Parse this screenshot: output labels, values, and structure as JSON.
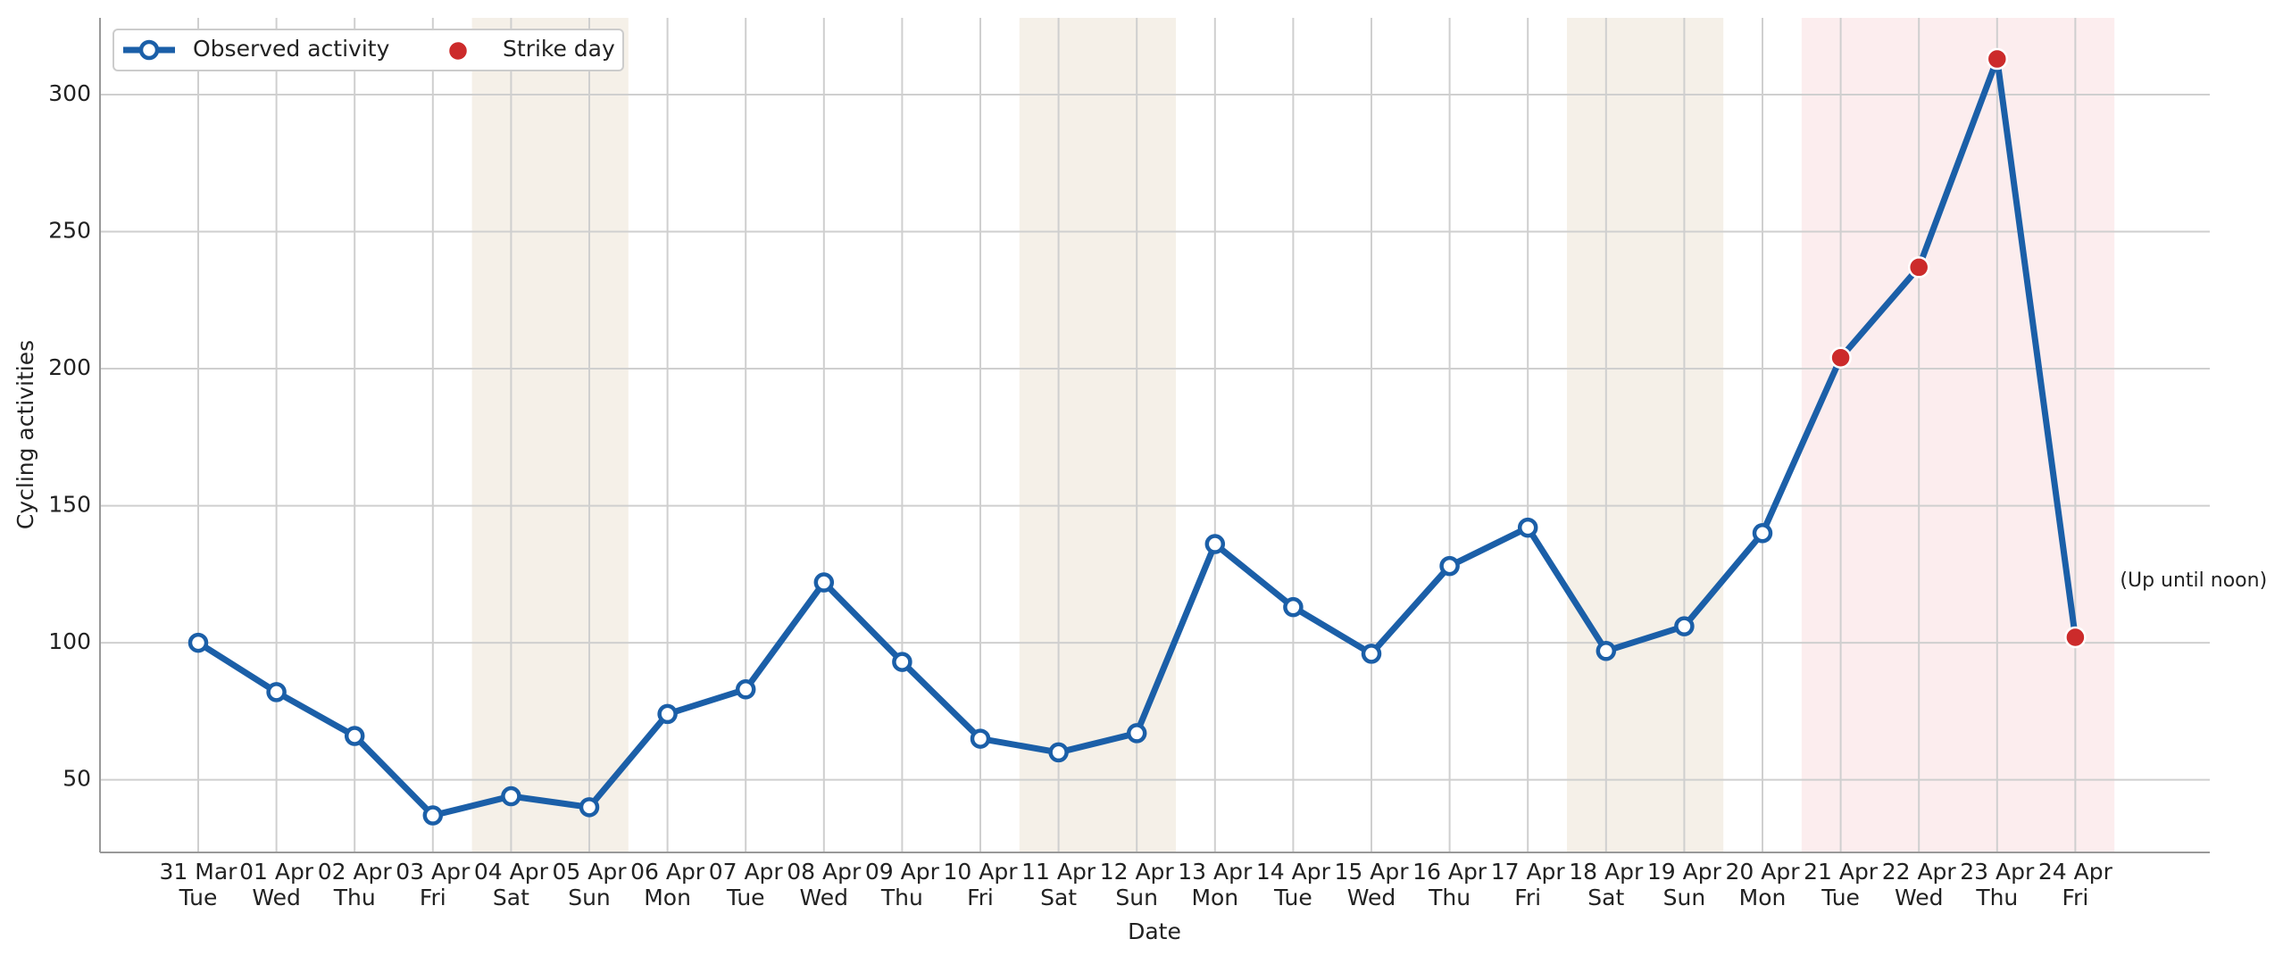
{
  "chart_data": {
    "type": "line",
    "xlabel": "Date",
    "ylabel": "Cycling activities",
    "categories": [
      "31 Mar",
      "01 Apr",
      "02 Apr",
      "03 Apr",
      "04 Apr",
      "05 Apr",
      "06 Apr",
      "07 Apr",
      "08 Apr",
      "09 Apr",
      "10 Apr",
      "11 Apr",
      "12 Apr",
      "13 Apr",
      "14 Apr",
      "15 Apr",
      "16 Apr",
      "17 Apr",
      "18 Apr",
      "19 Apr",
      "20 Apr",
      "21 Apr",
      "22 Apr",
      "23 Apr",
      "24 Apr"
    ],
    "weekdays": [
      "Tue",
      "Wed",
      "Thu",
      "Fri",
      "Sat",
      "Sun",
      "Mon",
      "Tue",
      "Wed",
      "Thu",
      "Fri",
      "Sat",
      "Sun",
      "Mon",
      "Tue",
      "Wed",
      "Thu",
      "Fri",
      "Sat",
      "Sun",
      "Mon",
      "Tue",
      "Wed",
      "Thu",
      "Fri"
    ],
    "series": [
      {
        "name": "Observed activity",
        "color": "#1b5fa8",
        "values": [
          100,
          82,
          66,
          37,
          44,
          40,
          74,
          83,
          122,
          93,
          65,
          60,
          67,
          136,
          113,
          96,
          128,
          142,
          97,
          106,
          140,
          204,
          237,
          313,
          102
        ]
      },
      {
        "name": "Strike day",
        "color": "#cc2b2b",
        "values": [
          null,
          null,
          null,
          null,
          null,
          null,
          null,
          null,
          null,
          null,
          null,
          null,
          null,
          null,
          null,
          null,
          null,
          null,
          null,
          null,
          null,
          204,
          237,
          313,
          102
        ]
      }
    ],
    "shaded": [
      {
        "from": "04 Apr",
        "to": "05 Apr",
        "color": "#f5f0e8"
      },
      {
        "from": "11 Apr",
        "to": "12 Apr",
        "color": "#f5f0e8"
      },
      {
        "from": "18 Apr",
        "to": "19 Apr",
        "color": "#f5f0e8"
      },
      {
        "from": "21 Apr",
        "to": "24 Apr",
        "color": "#fcedee"
      }
    ],
    "annotation": {
      "text": "(Up until noon)",
      "at": "24 Apr"
    },
    "ylim": [
      23.5,
      328
    ],
    "yticks": [
      50,
      100,
      150,
      200,
      250,
      300
    ],
    "grid": true,
    "legend": "upper left"
  }
}
